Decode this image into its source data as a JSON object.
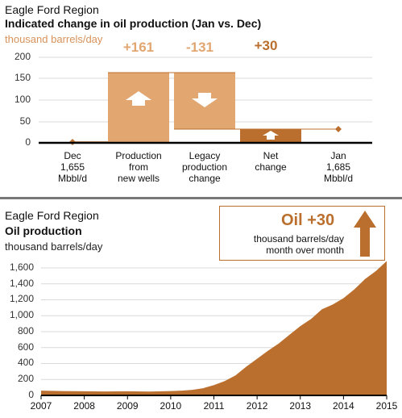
{
  "top": {
    "region": "Eagle Ford Region",
    "title": "Indicated change in oil production (Jan vs. Dec)",
    "unit": "thousand barrels/day",
    "y_ticks": [
      "200",
      "150",
      "100",
      "50",
      "0"
    ],
    "labels": {
      "dec": "Dec\n1,655\nMbbl/d",
      "prod": "Production\nfrom\nnew wells",
      "legacy": "Legacy\nproduction\nchange",
      "net": "Net\nchange",
      "jan": "Jan\n1,685\nMbbl/d"
    },
    "value_labels": {
      "prod": "+161",
      "legacy": "-131",
      "net": "+30"
    },
    "colors": {
      "light": "#e2a670",
      "dark": "#bb6f2e",
      "text_orange": "#d8925a"
    }
  },
  "bottom": {
    "region": "Eagle Ford Region",
    "title": "Oil production",
    "unit": "thousand barrels/day",
    "callout": {
      "value": "Oil +30",
      "line1": "thousand barrels/day",
      "line2": "month over month"
    },
    "y_ticks": [
      "1,600",
      "1,400",
      "1,200",
      "1,000",
      "800",
      "600",
      "400",
      "200",
      "0"
    ],
    "x_ticks": [
      "2007",
      "2008",
      "2009",
      "2010",
      "2011",
      "2012",
      "2013",
      "2014",
      "2015"
    ]
  },
  "chart_data": [
    {
      "type": "bar",
      "title": "Indicated change in oil production (Jan vs. Dec)",
      "ylabel": "thousand barrels/day",
      "ylim": [
        0,
        200
      ],
      "categories": [
        "Dec 1,655 Mbbl/d",
        "Production from new wells",
        "Legacy production change",
        "Net change",
        "Jan 1,685 Mbbl/d"
      ],
      "waterfall": [
        {
          "category": "Production from new wells",
          "start": 0,
          "end": 161,
          "label": "+161"
        },
        {
          "category": "Legacy production change",
          "start": 161,
          "end": 30,
          "label": "-131"
        },
        {
          "category": "Net change",
          "start": 0,
          "end": 30,
          "label": "+30"
        }
      ],
      "markers": [
        {
          "category": "Dec 1,655 Mbbl/d",
          "value": 0
        },
        {
          "category": "Jan 1,685 Mbbl/d",
          "value": 30
        }
      ],
      "grid": true
    },
    {
      "type": "area",
      "title": "Oil production",
      "ylabel": "thousand barrels/day",
      "ylim": [
        0,
        1700
      ],
      "xlim": [
        2007,
        2015
      ],
      "series": [
        {
          "x": [
            2007.0,
            2007.5,
            2008.0,
            2008.5,
            2009.0,
            2009.5,
            2010.0,
            2010.25,
            2010.5,
            2010.75,
            2011.0,
            2011.25,
            2011.5,
            2011.75,
            2012.0,
            2012.25,
            2012.5,
            2012.75,
            2013.0,
            2013.25,
            2013.5,
            2013.75,
            2014.0,
            2014.25,
            2014.5,
            2014.75,
            2015.0
          ],
          "values": [
            60,
            55,
            52,
            50,
            52,
            48,
            55,
            60,
            70,
            90,
            130,
            180,
            250,
            360,
            460,
            560,
            650,
            760,
            870,
            960,
            1080,
            1140,
            1220,
            1330,
            1460,
            1560,
            1685
          ]
        }
      ],
      "grid": true
    }
  ]
}
